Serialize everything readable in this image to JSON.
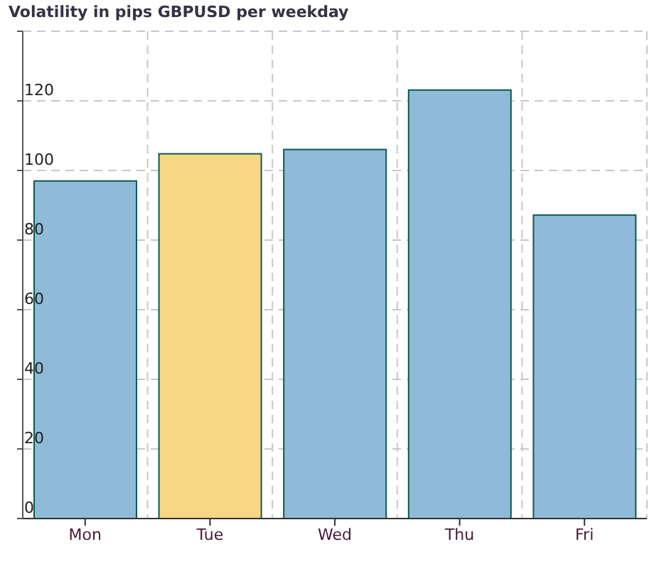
{
  "chart_data": {
    "type": "bar",
    "title": "Volatility in pips GBPUSD per weekday",
    "categories": [
      "Mon",
      "Tue",
      "Wed",
      "Thu",
      "Fri"
    ],
    "values": [
      97,
      104.8,
      106,
      123.1,
      87.2
    ],
    "colors": [
      "#8fbbd9",
      "#f7d783",
      "#8fbbd9",
      "#8fbbd9",
      "#8fbbd9"
    ],
    "ylim": [
      0,
      140
    ],
    "yticks": [
      0,
      20,
      40,
      60,
      80,
      100,
      120,
      {
        "value": 140,
        "label": null
      }
    ],
    "grid": true
  }
}
